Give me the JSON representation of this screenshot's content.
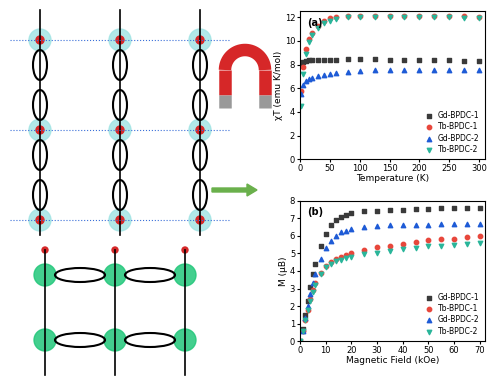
{
  "chart_data": [
    {
      "type": "scatter",
      "annotations": [
        "(a)"
      ],
      "x_label": "Temperature (K)",
      "y_label": "χT (emu K/mol)",
      "xlim": [
        0,
        310
      ],
      "xticks": [
        0,
        50,
        100,
        150,
        200,
        250,
        300
      ],
      "ylim": [
        0,
        12.5
      ],
      "yticks": [
        0,
        2,
        4,
        6,
        8,
        10,
        12
      ],
      "legend": "lower right",
      "x": [
        2,
        5,
        10,
        15,
        20,
        30,
        40,
        50,
        60,
        80,
        100,
        125,
        150,
        175,
        200,
        225,
        250,
        275,
        300
      ],
      "series": [
        {
          "name": "Gd-BPDC-1",
          "color": "#3a3a3a",
          "marker": "square",
          "values": [
            8.0,
            8.2,
            8.3,
            8.35,
            8.4,
            8.4,
            8.4,
            8.4,
            8.4,
            8.45,
            8.45,
            8.45,
            8.4,
            8.4,
            8.4,
            8.35,
            8.35,
            8.3,
            8.3
          ]
        },
        {
          "name": "Tb-BPDC-1",
          "color": "#e8473c",
          "marker": "circle",
          "values": [
            5.8,
            7.8,
            9.3,
            10.2,
            10.7,
            11.3,
            11.7,
            11.9,
            12.0,
            12.1,
            12.15,
            12.15,
            12.15,
            12.15,
            12.1,
            12.1,
            12.1,
            12.1,
            12.05
          ]
        },
        {
          "name": "Gd-BPDC-2",
          "color": "#1e5bd6",
          "marker": "triangle_up",
          "values": [
            5.5,
            6.3,
            6.6,
            6.8,
            6.9,
            7.0,
            7.1,
            7.2,
            7.3,
            7.4,
            7.45,
            7.5,
            7.5,
            7.55,
            7.55,
            7.55,
            7.55,
            7.55,
            7.55
          ]
        },
        {
          "name": "Tb-BPDC-2",
          "color": "#2ab59a",
          "marker": "triangle_down",
          "values": [
            4.5,
            7.2,
            8.9,
            9.9,
            10.5,
            11.1,
            11.5,
            11.7,
            11.85,
            12.0,
            12.05,
            12.05,
            12.05,
            12.05,
            12.0,
            12.0,
            12.0,
            11.95,
            11.9
          ]
        }
      ]
    },
    {
      "type": "scatter",
      "annotations": [
        "(b)"
      ],
      "x_label": "Magnetic Field (kOe)",
      "y_label": "M (μB)",
      "xlim": [
        0,
        72
      ],
      "xticks": [
        0,
        10,
        20,
        30,
        40,
        50,
        60,
        70
      ],
      "ylim": [
        0,
        8
      ],
      "yticks": [
        0,
        1,
        2,
        3,
        4,
        5,
        6,
        7,
        8
      ],
      "legend": "lower right",
      "x": [
        0,
        1,
        2,
        3,
        4,
        5,
        6,
        8,
        10,
        12,
        14,
        16,
        18,
        20,
        25,
        30,
        35,
        40,
        45,
        50,
        55,
        60,
        65,
        70
      ],
      "series": [
        {
          "name": "Gd-BPDC-1",
          "color": "#3a3a3a",
          "marker": "square",
          "values": [
            0,
            0.7,
            1.5,
            2.3,
            3.1,
            3.8,
            4.4,
            5.4,
            6.1,
            6.6,
            6.9,
            7.1,
            7.2,
            7.3,
            7.4,
            7.45,
            7.5,
            7.5,
            7.55,
            7.55,
            7.6,
            7.6,
            7.6,
            7.6
          ]
        },
        {
          "name": "Tb-BPDC-1",
          "color": "#e8473c",
          "marker": "circle",
          "values": [
            0,
            0.6,
            1.2,
            1.8,
            2.4,
            2.9,
            3.3,
            3.9,
            4.3,
            4.5,
            4.7,
            4.8,
            4.9,
            5.0,
            5.2,
            5.35,
            5.45,
            5.55,
            5.65,
            5.75,
            5.8,
            5.85,
            5.95,
            6.0
          ]
        },
        {
          "name": "Gd-BPDC-2",
          "color": "#1e5bd6",
          "marker": "triangle_up",
          "values": [
            0,
            0.6,
            1.3,
            2.0,
            2.7,
            3.3,
            3.8,
            4.7,
            5.3,
            5.7,
            6.0,
            6.2,
            6.3,
            6.4,
            6.5,
            6.55,
            6.6,
            6.6,
            6.65,
            6.65,
            6.7,
            6.7,
            6.7,
            6.7
          ]
        },
        {
          "name": "Tb-BPDC-2",
          "color": "#2ab59a",
          "marker": "triangle_down",
          "values": [
            0,
            0.6,
            1.2,
            1.8,
            2.3,
            2.8,
            3.2,
            3.8,
            4.2,
            4.4,
            4.55,
            4.65,
            4.75,
            4.8,
            4.95,
            5.05,
            5.15,
            5.25,
            5.3,
            5.4,
            5.45,
            5.5,
            5.55,
            5.6
          ]
        }
      ]
    }
  ]
}
